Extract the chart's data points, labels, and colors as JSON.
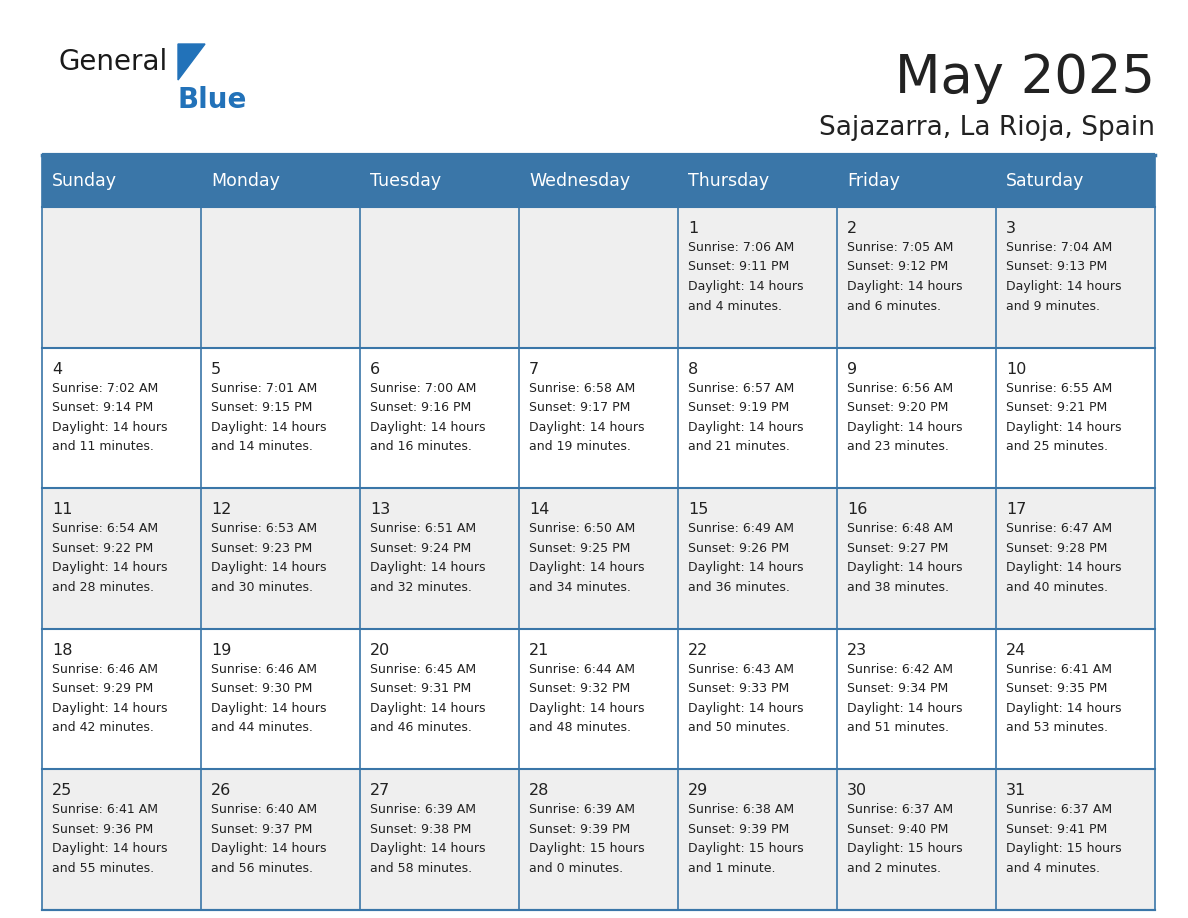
{
  "title": "May 2025",
  "subtitle": "Sajazarra, La Rioja, Spain",
  "days_of_week": [
    "Sunday",
    "Monday",
    "Tuesday",
    "Wednesday",
    "Thursday",
    "Friday",
    "Saturday"
  ],
  "header_bg": "#3a76a8",
  "header_text": "#ffffff",
  "row_bg_even": "#efefef",
  "row_bg_odd": "#ffffff",
  "border_color": "#3a76a8",
  "title_color": "#222222",
  "subtitle_color": "#222222",
  "text_color": "#222222",
  "calendar_data": [
    [
      {
        "day": null,
        "sunrise": null,
        "sunset": null,
        "daylight_line1": null,
        "daylight_line2": null
      },
      {
        "day": null,
        "sunrise": null,
        "sunset": null,
        "daylight_line1": null,
        "daylight_line2": null
      },
      {
        "day": null,
        "sunrise": null,
        "sunset": null,
        "daylight_line1": null,
        "daylight_line2": null
      },
      {
        "day": null,
        "sunrise": null,
        "sunset": null,
        "daylight_line1": null,
        "daylight_line2": null
      },
      {
        "day": 1,
        "sunrise": "7:06 AM",
        "sunset": "9:11 PM",
        "daylight_line1": "14 hours",
        "daylight_line2": "and 4 minutes."
      },
      {
        "day": 2,
        "sunrise": "7:05 AM",
        "sunset": "9:12 PM",
        "daylight_line1": "14 hours",
        "daylight_line2": "and 6 minutes."
      },
      {
        "day": 3,
        "sunrise": "7:04 AM",
        "sunset": "9:13 PM",
        "daylight_line1": "14 hours",
        "daylight_line2": "and 9 minutes."
      }
    ],
    [
      {
        "day": 4,
        "sunrise": "7:02 AM",
        "sunset": "9:14 PM",
        "daylight_line1": "14 hours",
        "daylight_line2": "and 11 minutes."
      },
      {
        "day": 5,
        "sunrise": "7:01 AM",
        "sunset": "9:15 PM",
        "daylight_line1": "14 hours",
        "daylight_line2": "and 14 minutes."
      },
      {
        "day": 6,
        "sunrise": "7:00 AM",
        "sunset": "9:16 PM",
        "daylight_line1": "14 hours",
        "daylight_line2": "and 16 minutes."
      },
      {
        "day": 7,
        "sunrise": "6:58 AM",
        "sunset": "9:17 PM",
        "daylight_line1": "14 hours",
        "daylight_line2": "and 19 minutes."
      },
      {
        "day": 8,
        "sunrise": "6:57 AM",
        "sunset": "9:19 PM",
        "daylight_line1": "14 hours",
        "daylight_line2": "and 21 minutes."
      },
      {
        "day": 9,
        "sunrise": "6:56 AM",
        "sunset": "9:20 PM",
        "daylight_line1": "14 hours",
        "daylight_line2": "and 23 minutes."
      },
      {
        "day": 10,
        "sunrise": "6:55 AM",
        "sunset": "9:21 PM",
        "daylight_line1": "14 hours",
        "daylight_line2": "and 25 minutes."
      }
    ],
    [
      {
        "day": 11,
        "sunrise": "6:54 AM",
        "sunset": "9:22 PM",
        "daylight_line1": "14 hours",
        "daylight_line2": "and 28 minutes."
      },
      {
        "day": 12,
        "sunrise": "6:53 AM",
        "sunset": "9:23 PM",
        "daylight_line1": "14 hours",
        "daylight_line2": "and 30 minutes."
      },
      {
        "day": 13,
        "sunrise": "6:51 AM",
        "sunset": "9:24 PM",
        "daylight_line1": "14 hours",
        "daylight_line2": "and 32 minutes."
      },
      {
        "day": 14,
        "sunrise": "6:50 AM",
        "sunset": "9:25 PM",
        "daylight_line1": "14 hours",
        "daylight_line2": "and 34 minutes."
      },
      {
        "day": 15,
        "sunrise": "6:49 AM",
        "sunset": "9:26 PM",
        "daylight_line1": "14 hours",
        "daylight_line2": "and 36 minutes."
      },
      {
        "day": 16,
        "sunrise": "6:48 AM",
        "sunset": "9:27 PM",
        "daylight_line1": "14 hours",
        "daylight_line2": "and 38 minutes."
      },
      {
        "day": 17,
        "sunrise": "6:47 AM",
        "sunset": "9:28 PM",
        "daylight_line1": "14 hours",
        "daylight_line2": "and 40 minutes."
      }
    ],
    [
      {
        "day": 18,
        "sunrise": "6:46 AM",
        "sunset": "9:29 PM",
        "daylight_line1": "14 hours",
        "daylight_line2": "and 42 minutes."
      },
      {
        "day": 19,
        "sunrise": "6:46 AM",
        "sunset": "9:30 PM",
        "daylight_line1": "14 hours",
        "daylight_line2": "and 44 minutes."
      },
      {
        "day": 20,
        "sunrise": "6:45 AM",
        "sunset": "9:31 PM",
        "daylight_line1": "14 hours",
        "daylight_line2": "and 46 minutes."
      },
      {
        "day": 21,
        "sunrise": "6:44 AM",
        "sunset": "9:32 PM",
        "daylight_line1": "14 hours",
        "daylight_line2": "and 48 minutes."
      },
      {
        "day": 22,
        "sunrise": "6:43 AM",
        "sunset": "9:33 PM",
        "daylight_line1": "14 hours",
        "daylight_line2": "and 50 minutes."
      },
      {
        "day": 23,
        "sunrise": "6:42 AM",
        "sunset": "9:34 PM",
        "daylight_line1": "14 hours",
        "daylight_line2": "and 51 minutes."
      },
      {
        "day": 24,
        "sunrise": "6:41 AM",
        "sunset": "9:35 PM",
        "daylight_line1": "14 hours",
        "daylight_line2": "and 53 minutes."
      }
    ],
    [
      {
        "day": 25,
        "sunrise": "6:41 AM",
        "sunset": "9:36 PM",
        "daylight_line1": "14 hours",
        "daylight_line2": "and 55 minutes."
      },
      {
        "day": 26,
        "sunrise": "6:40 AM",
        "sunset": "9:37 PM",
        "daylight_line1": "14 hours",
        "daylight_line2": "and 56 minutes."
      },
      {
        "day": 27,
        "sunrise": "6:39 AM",
        "sunset": "9:38 PM",
        "daylight_line1": "14 hours",
        "daylight_line2": "and 58 minutes."
      },
      {
        "day": 28,
        "sunrise": "6:39 AM",
        "sunset": "9:39 PM",
        "daylight_line1": "15 hours",
        "daylight_line2": "and 0 minutes."
      },
      {
        "day": 29,
        "sunrise": "6:38 AM",
        "sunset": "9:39 PM",
        "daylight_line1": "15 hours",
        "daylight_line2": "and 1 minute."
      },
      {
        "day": 30,
        "sunrise": "6:37 AM",
        "sunset": "9:40 PM",
        "daylight_line1": "15 hours",
        "daylight_line2": "and 2 minutes."
      },
      {
        "day": 31,
        "sunrise": "6:37 AM",
        "sunset": "9:41 PM",
        "daylight_line1": "15 hours",
        "daylight_line2": "and 4 minutes."
      }
    ]
  ]
}
